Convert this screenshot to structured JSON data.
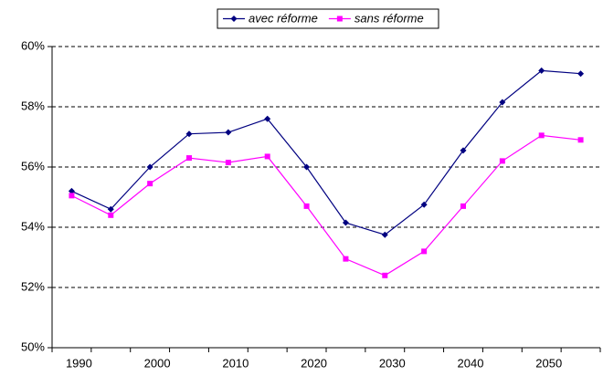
{
  "chart_data": {
    "type": "line",
    "categories": [
      "1990",
      null,
      "2000",
      null,
      "2010",
      null,
      "2020",
      null,
      "2030",
      null,
      "2040",
      null,
      "2050",
      null
    ],
    "series": [
      {
        "name": "avec réforme",
        "color": "#000080",
        "marker": "diamond",
        "values": [
          55.2,
          54.6,
          56.0,
          57.1,
          57.15,
          57.6,
          56.0,
          54.15,
          53.75,
          54.75,
          56.55,
          58.15,
          59.2,
          59.1
        ]
      },
      {
        "name": "sans réforme",
        "color": "#ff00ff",
        "marker": "square",
        "values": [
          55.05,
          54.4,
          55.45,
          56.3,
          56.15,
          56.35,
          54.7,
          52.95,
          52.4,
          53.2,
          54.7,
          56.2,
          57.05,
          56.9
        ]
      }
    ],
    "ylim": [
      50,
      60
    ],
    "yticks": [
      {
        "value": 50,
        "label": "50%"
      },
      {
        "value": 52,
        "label": "52%"
      },
      {
        "value": 54,
        "label": "54%"
      },
      {
        "value": 56,
        "label": "56%"
      },
      {
        "value": 58,
        "label": "58%"
      },
      {
        "value": 60,
        "label": "60%"
      }
    ],
    "grid": true,
    "legend": "top"
  }
}
